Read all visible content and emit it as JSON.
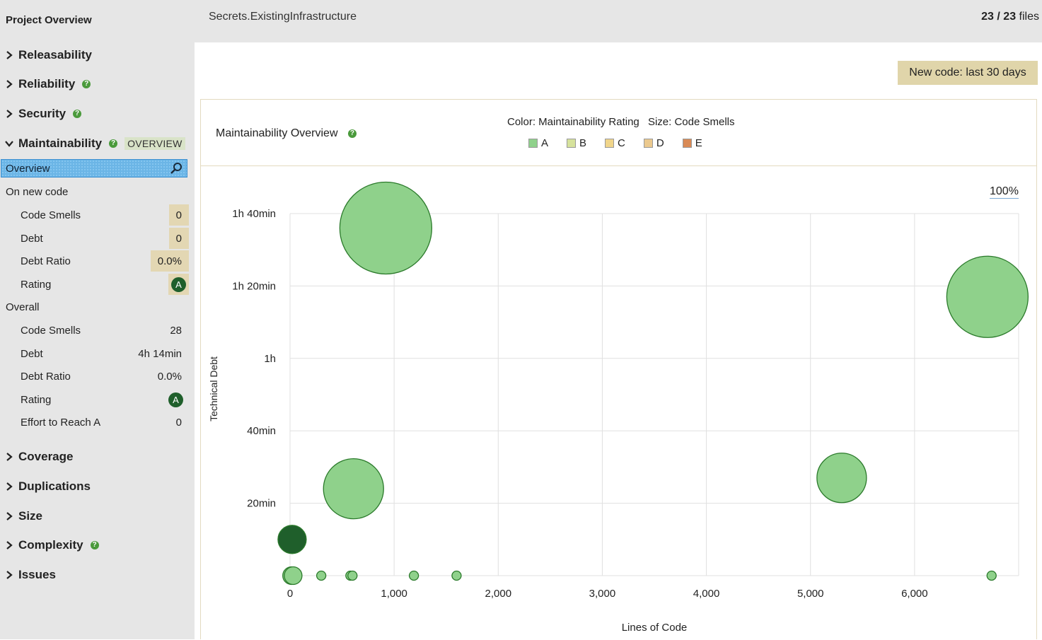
{
  "sidebar": {
    "title": "Project Overview",
    "categories_top": [
      {
        "label": "Releasability",
        "help": false
      },
      {
        "label": "Reliability",
        "help": true
      },
      {
        "label": "Security",
        "help": true
      }
    ],
    "maintainability": {
      "label": "Maintainability",
      "tag": "OVERVIEW"
    },
    "selected_item": "Overview",
    "new_code": {
      "heading": "On new code",
      "code_smells_label": "Code Smells",
      "code_smells": "0",
      "debt_label": "Debt",
      "debt": "0",
      "debt_ratio_label": "Debt Ratio",
      "debt_ratio": "0.0%",
      "rating_label": "Rating",
      "rating": "A"
    },
    "overall": {
      "heading": "Overall",
      "code_smells_label": "Code Smells",
      "code_smells": "28",
      "debt_label": "Debt",
      "debt": "4h 14min",
      "debt_ratio_label": "Debt Ratio",
      "debt_ratio": "0.0%",
      "rating_label": "Rating",
      "rating": "A",
      "effort_label": "Effort to Reach A",
      "effort": "0"
    },
    "categories_bottom": [
      {
        "label": "Coverage",
        "help": false
      },
      {
        "label": "Duplications",
        "help": false
      },
      {
        "label": "Size",
        "help": false
      },
      {
        "label": "Complexity",
        "help": true
      },
      {
        "label": "Issues",
        "help": false
      }
    ]
  },
  "topbar": {
    "path": "Secrets.ExistingInfrastructure",
    "files_count": "23 / 23",
    "files_label": "files"
  },
  "new_code_button": "New code: last 30 days",
  "panel": {
    "title": "Maintainability Overview",
    "color_caption": "Color: Maintainability Rating",
    "size_caption": "Size: Code Smells",
    "legend": [
      {
        "label": "A",
        "color": "#8fd18b"
      },
      {
        "label": "B",
        "color": "#d6e29c"
      },
      {
        "label": "C",
        "color": "#f0d58a"
      },
      {
        "label": "D",
        "color": "#ebc98e"
      },
      {
        "label": "E",
        "color": "#d98a55"
      }
    ],
    "zoom": "100%"
  },
  "colors": {
    "rating_a": "#8fd18b",
    "rating_a_stroke": "#2b7a2b",
    "rating_dark": "#1f5f2b",
    "highlight": "#e3d7b3"
  },
  "chart_data": {
    "type": "scatter",
    "title": "Maintainability Overview",
    "xlabel": "Lines of Code",
    "ylabel": "Technical Debt",
    "xlim": [
      0,
      7000
    ],
    "ylim": [
      0,
      100
    ],
    "x_ticks": [
      0,
      1000,
      2000,
      3000,
      4000,
      5000,
      6000
    ],
    "x_tick_labels": [
      "0",
      "1,000",
      "2,000",
      "3,000",
      "4,000",
      "5,000",
      "6,000"
    ],
    "y_ticks": [
      20,
      40,
      60,
      80,
      100
    ],
    "y_tick_labels": [
      "20min",
      "40min",
      "1h",
      "1h 20min",
      "1h 40min"
    ],
    "y_unit": "minutes",
    "points": [
      {
        "x": 920,
        "y": 96,
        "code_smells": 8,
        "rating": "A"
      },
      {
        "x": 6700,
        "y": 77,
        "code_smells": 7,
        "rating": "A"
      },
      {
        "x": 610,
        "y": 24,
        "code_smells": 5,
        "rating": "A"
      },
      {
        "x": 5300,
        "y": 27,
        "code_smells": 4,
        "rating": "A"
      },
      {
        "x": 20,
        "y": 10,
        "code_smells": 2,
        "rating": "A",
        "selected": true
      },
      {
        "x": 15,
        "y": 0,
        "code_smells": 1,
        "rating": "A"
      },
      {
        "x": 30,
        "y": 0,
        "code_smells": 1,
        "rating": "A"
      },
      {
        "x": 300,
        "y": 0,
        "code_smells": 0,
        "rating": "A"
      },
      {
        "x": 580,
        "y": 0,
        "code_smells": 0,
        "rating": "A"
      },
      {
        "x": 600,
        "y": 0,
        "code_smells": 0,
        "rating": "A"
      },
      {
        "x": 1190,
        "y": 0,
        "code_smells": 0,
        "rating": "A"
      },
      {
        "x": 1600,
        "y": 0,
        "code_smells": 0,
        "rating": "A"
      },
      {
        "x": 6740,
        "y": 0,
        "code_smells": 0,
        "rating": "A"
      }
    ]
  }
}
